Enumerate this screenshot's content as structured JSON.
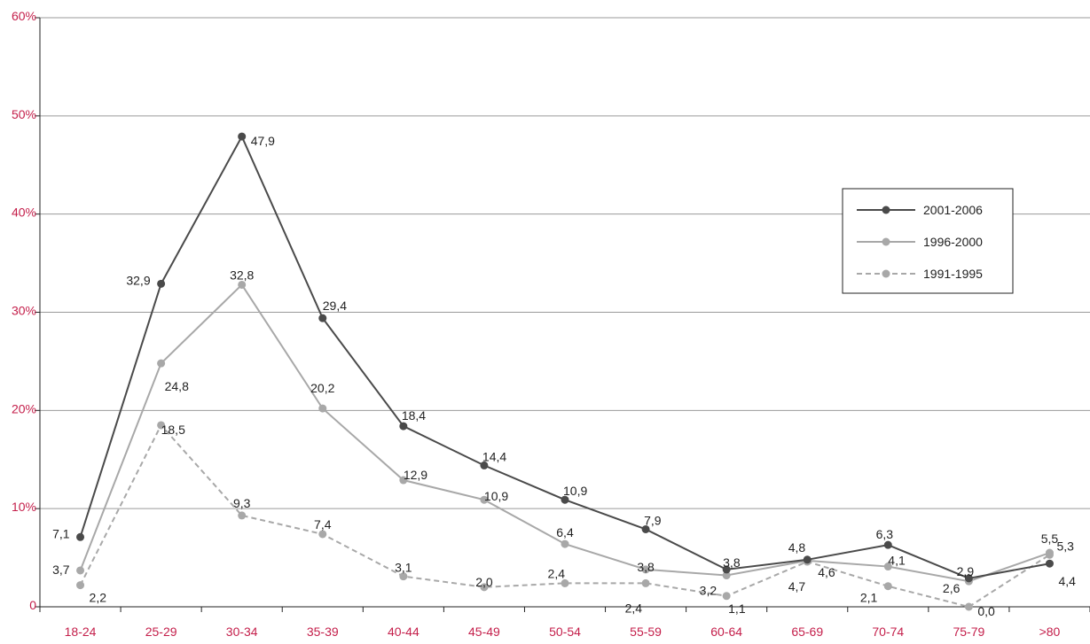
{
  "chart_data": {
    "type": "line",
    "title": "",
    "xlabel": "",
    "ylabel": "",
    "ylim": [
      0,
      60
    ],
    "grid": true,
    "legend_position": "right",
    "y_ticks": [
      "0",
      "10%",
      "20%",
      "30%",
      "40%",
      "50%",
      "60%"
    ],
    "categories": [
      "18-24",
      "25-29",
      "30-34",
      "35-39",
      "40-44",
      "45-49",
      "50-54",
      "55-59",
      "60-64",
      "65-69",
      "70-74",
      "75-79",
      ">80"
    ],
    "series": [
      {
        "name": "2001-2006",
        "color": "#4a4a4a",
        "dash": false,
        "values": [
          7.1,
          32.9,
          47.9,
          29.4,
          18.4,
          14.4,
          10.9,
          7.9,
          3.8,
          4.8,
          6.3,
          2.9,
          4.4
        ],
        "labels": [
          "7,1",
          "32,9",
          "47,9",
          "29,4",
          "18,4",
          "14,4",
          "10,9",
          "7,9",
          "3,8",
          "4,8",
          "6,3",
          "2,9",
          "4,4"
        ]
      },
      {
        "name": "1996-2000",
        "color": "#a8a8a8",
        "dash": false,
        "values": [
          3.7,
          24.8,
          32.8,
          20.2,
          12.9,
          10.9,
          6.4,
          3.8,
          3.2,
          4.7,
          4.1,
          2.6,
          5.5
        ],
        "labels": [
          "3,7",
          "24,8",
          "32,8",
          "20,2",
          "12,9",
          "10,9",
          "6,4",
          "3,8",
          "3,2",
          "4,7",
          "4,1",
          "2,6",
          "5,5"
        ]
      },
      {
        "name": "1991-1995",
        "color": "#a8a8a8",
        "dash": true,
        "values": [
          2.2,
          18.5,
          9.3,
          7.4,
          3.1,
          2.0,
          2.4,
          2.4,
          1.1,
          4.6,
          2.1,
          0.0,
          5.3
        ],
        "labels": [
          "2,2",
          "18,5",
          "9,3",
          "7,4",
          "3,1",
          "2,0",
          "2,4",
          "2,4",
          "1,1",
          "4,6",
          "2,1",
          "0,0",
          "5,3"
        ]
      }
    ]
  }
}
